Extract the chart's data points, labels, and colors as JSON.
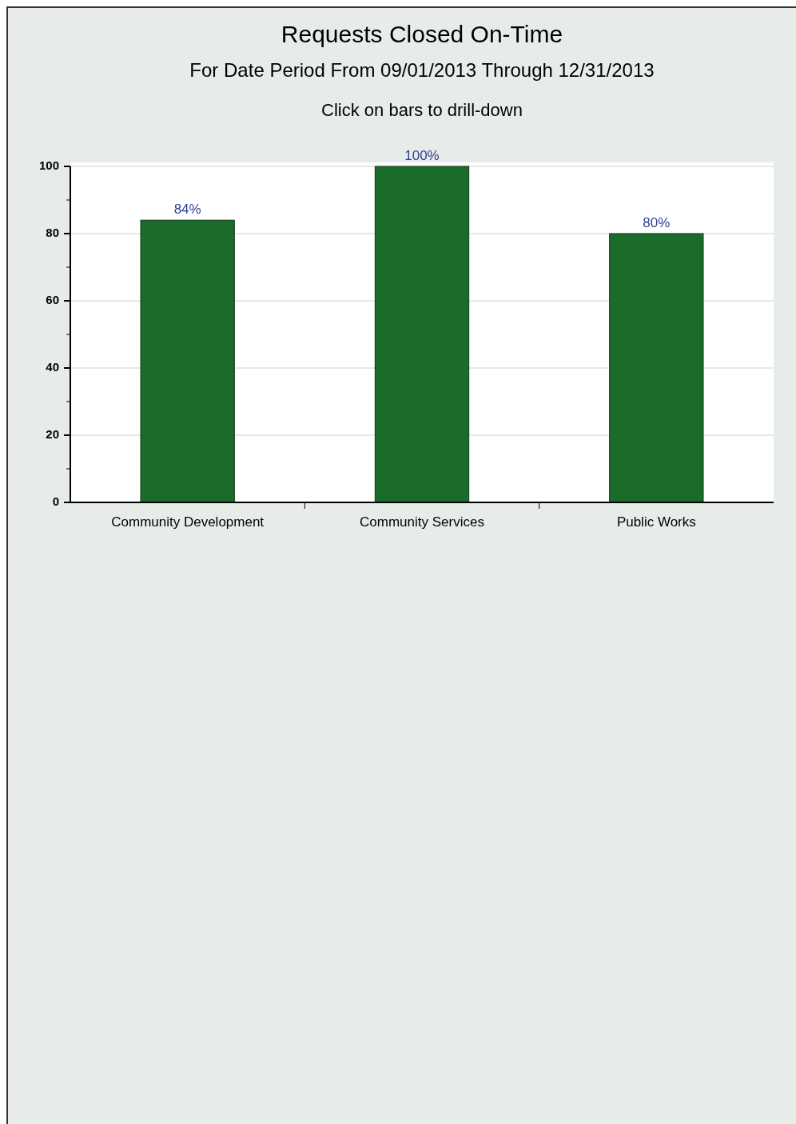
{
  "chart_data": {
    "type": "bar",
    "title": "Requests Closed On-Time",
    "subtitle": "For Date Period From 09/01/2013 Through 12/31/2013",
    "annotations": [
      "Click on bars to drill-down"
    ],
    "categories": [
      "Community Development",
      "Community Services",
      "Public Works"
    ],
    "values": [
      84,
      100,
      80
    ],
    "color": "#1b6b2b",
    "value_labels": [
      "84%",
      "100%",
      "80%"
    ],
    "ylim": [
      0,
      100
    ],
    "yticks": [
      0,
      20,
      40,
      60,
      80,
      100
    ],
    "grid": "y"
  }
}
